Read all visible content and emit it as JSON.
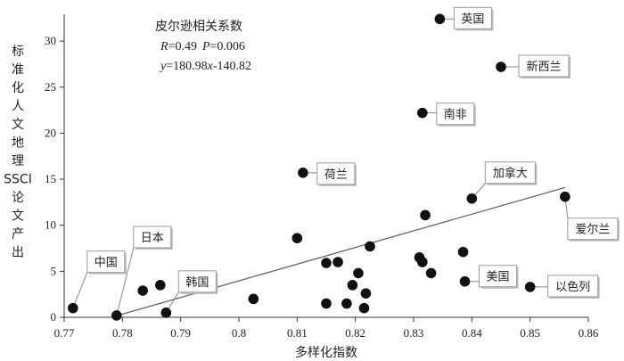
{
  "chart_data": {
    "type": "scatter",
    "title": "",
    "xlabel": "多样化指数",
    "ylabel": "标准化人文地理SSCI论文产出",
    "xlim": [
      0.77,
      0.86
    ],
    "ylim": [
      0,
      34
    ],
    "x_ticks": [
      "0.77",
      "0.78",
      "0.79",
      "0.8",
      "0.81",
      "0.82",
      "0.83",
      "0.84",
      "0.85",
      "0.86"
    ],
    "y_ticks": [
      "0",
      "5",
      "10",
      "15",
      "20",
      "25",
      "30"
    ],
    "grid": false,
    "stats": {
      "heading": "皮尔逊相关系数",
      "r_label": "R",
      "r_value": "=0.49",
      "p_label": "P",
      "p_value": "=0.006",
      "eq_y": "y",
      "eq_mid": "=180.98",
      "eq_x": "x",
      "eq_tail": "-140.82"
    },
    "trendline": {
      "slope": 180.98,
      "intercept": -140.82,
      "x_range": [
        0.779,
        0.856
      ]
    },
    "points": [
      {
        "x": 0.7715,
        "y": 1.0,
        "label": "中国"
      },
      {
        "x": 0.779,
        "y": 0.2,
        "label": "日本"
      },
      {
        "x": 0.7835,
        "y": 2.9
      },
      {
        "x": 0.7865,
        "y": 3.5
      },
      {
        "x": 0.7875,
        "y": 0.5,
        "label": "韩国"
      },
      {
        "x": 0.8025,
        "y": 2.0
      },
      {
        "x": 0.81,
        "y": 8.6
      },
      {
        "x": 0.811,
        "y": 15.7,
        "label": "荷兰"
      },
      {
        "x": 0.815,
        "y": 5.9
      },
      {
        "x": 0.815,
        "y": 1.5
      },
      {
        "x": 0.817,
        "y": 6.0
      },
      {
        "x": 0.8185,
        "y": 1.5
      },
      {
        "x": 0.8195,
        "y": 3.5
      },
      {
        "x": 0.8205,
        "y": 4.8
      },
      {
        "x": 0.8215,
        "y": 1.0
      },
      {
        "x": 0.8218,
        "y": 2.6
      },
      {
        "x": 0.8225,
        "y": 7.7
      },
      {
        "x": 0.831,
        "y": 6.5
      },
      {
        "x": 0.8315,
        "y": 22.2,
        "label": "南非"
      },
      {
        "x": 0.8315,
        "y": 6.0
      },
      {
        "x": 0.832,
        "y": 11.1
      },
      {
        "x": 0.833,
        "y": 4.8
      },
      {
        "x": 0.8345,
        "y": 32.4,
        "label": "英国"
      },
      {
        "x": 0.8385,
        "y": 7.1
      },
      {
        "x": 0.8388,
        "y": 3.9,
        "label": "美国"
      },
      {
        "x": 0.84,
        "y": 12.9,
        "label": "加拿大"
      },
      {
        "x": 0.845,
        "y": 27.2,
        "label": "新西兰"
      },
      {
        "x": 0.85,
        "y": 3.3,
        "label": "以色列"
      },
      {
        "x": 0.856,
        "y": 13.1,
        "label": "爱尔兰"
      }
    ]
  }
}
